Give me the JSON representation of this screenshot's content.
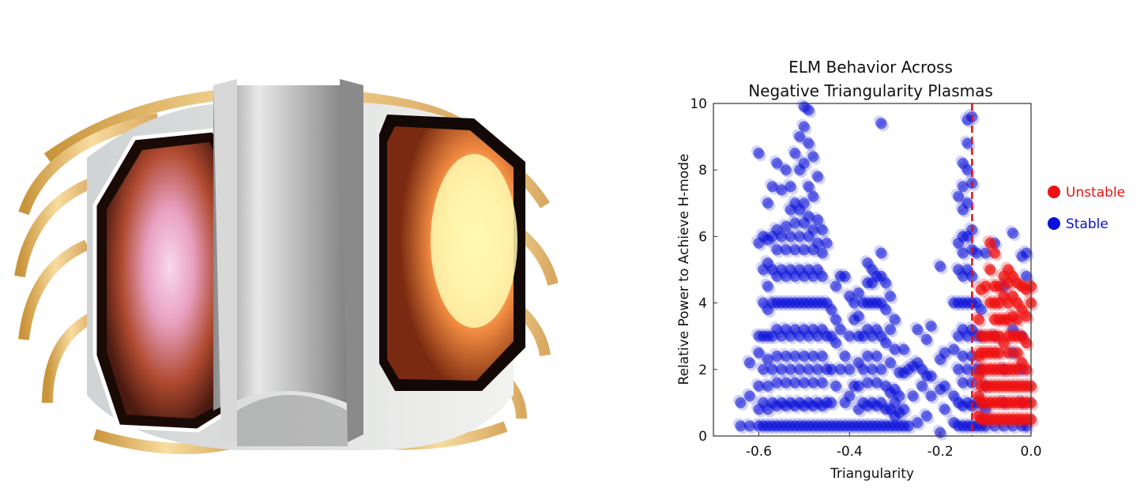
{
  "chart_data": {
    "type": "scatter",
    "title": [
      "ELM Behavior Across",
      "Negative Triangularity Plasmas"
    ],
    "xlabel": "Triangularity",
    "ylabel": "Relative Power to Achieve H-mode",
    "xlim": [
      -0.7,
      0.0
    ],
    "ylim": [
      0,
      10
    ],
    "xticks": [
      "-0.6",
      "-0.4",
      "-0.2",
      "0.0"
    ],
    "xtick_values": [
      -0.6,
      -0.4,
      -0.2,
      0.0
    ],
    "yticks": [
      "0",
      "2",
      "4",
      "6",
      "8",
      "10"
    ],
    "ytick_values": [
      0,
      2,
      4,
      6,
      8,
      10
    ],
    "grid": false,
    "legend_position": "right",
    "threshold_line": {
      "x": -0.13,
      "style": "dashed",
      "color": "#e01010"
    },
    "series": [
      {
        "name": "Stable",
        "color": "#0a10d8",
        "columns": [
          {
            "x": -0.64,
            "y": [
              1.0,
              0.3
            ]
          },
          {
            "x": -0.62,
            "y": [
              0.3,
              1.2,
              2.2
            ]
          },
          {
            "x": -0.6,
            "y": [
              0.3,
              0.8,
              1.5,
              2.5,
              3.0,
              5.8,
              8.5
            ]
          },
          {
            "x": -0.59,
            "y": [
              0.3,
              1,
              2,
              3,
              4,
              5,
              6
            ]
          },
          {
            "x": -0.58,
            "y": [
              0.3,
              0.8,
              1.5,
              2.3,
              3,
              3.8,
              4.5,
              5.2,
              5.9,
              7.0
            ]
          },
          {
            "x": -0.57,
            "y": [
              0.3,
              1,
              2,
              3,
              4,
              5,
              6,
              7.5
            ]
          },
          {
            "x": -0.56,
            "y": [
              0.3,
              0.9,
              1.6,
              2.4,
              3.2,
              4,
              4.8,
              5.6,
              6.2,
              8.2
            ]
          },
          {
            "x": -0.55,
            "y": [
              0.3,
              1,
              2,
              3,
              4,
              5,
              6,
              7.4
            ]
          },
          {
            "x": -0.54,
            "y": [
              0.3,
              0.9,
              1.6,
              2.4,
              3.2,
              4,
              4.8,
              5.6,
              6.3,
              8.0
            ]
          },
          {
            "x": -0.53,
            "y": [
              0.3,
              1,
              2,
              3,
              4,
              5,
              6,
              6.8,
              7.5
            ]
          },
          {
            "x": -0.52,
            "y": [
              0.3,
              0.9,
              1.6,
              2.4,
              3.2,
              4,
              4.8,
              5.6,
              6.4,
              7.0,
              8.5
            ]
          },
          {
            "x": -0.51,
            "y": [
              0.3,
              1,
              2,
              3,
              4,
              5,
              6,
              6.8,
              8.0,
              9.0
            ]
          },
          {
            "x": -0.5,
            "y": [
              0.3,
              0.9,
              1.6,
              2.4,
              3.2,
              4,
              4.8,
              5.6,
              6.4,
              7.0,
              8.2,
              9.3,
              9.9
            ]
          },
          {
            "x": -0.49,
            "y": [
              0.3,
              1,
              2,
              3,
              4,
              5,
              6,
              6.6,
              7.5,
              8.8,
              9.8
            ]
          },
          {
            "x": -0.48,
            "y": [
              0.3,
              0.9,
              1.6,
              2.4,
              3.2,
              4,
              4.8,
              5.6,
              6.2,
              7.2,
              8.4
            ]
          },
          {
            "x": -0.47,
            "y": [
              0.3,
              1,
              2,
              3,
              4,
              5,
              5.8,
              6.5,
              7.8
            ]
          },
          {
            "x": -0.46,
            "y": [
              0.3,
              0.9,
              1.6,
              2.4,
              3.2,
              4,
              4.8,
              5.5,
              6.2
            ]
          },
          {
            "x": -0.45,
            "y": [
              0.3,
              1,
              2,
              3,
              4,
              5.8
            ]
          },
          {
            "x": -0.44,
            "y": [
              0.3,
              1,
              2,
              3,
              3.8
            ]
          },
          {
            "x": -0.43,
            "y": [
              0.3,
              1.5,
              2.8,
              3.5,
              4.5
            ]
          },
          {
            "x": -0.42,
            "y": [
              0.3,
              2.0,
              3.2,
              4.8
            ]
          },
          {
            "x": -0.41,
            "y": [
              0.3,
              1,
              2.4,
              4.8
            ]
          },
          {
            "x": -0.4,
            "y": [
              0.3,
              1.2,
              2,
              3,
              4.2
            ]
          },
          {
            "x": -0.39,
            "y": [
              0.3,
              1.5,
              3.5,
              4.0
            ]
          },
          {
            "x": -0.38,
            "y": [
              0.3,
              0.8,
              1.5,
              2.2,
              3,
              3.6,
              4.3
            ]
          },
          {
            "x": -0.37,
            "y": [
              0.3,
              1,
              2,
              3,
              4
            ]
          },
          {
            "x": -0.36,
            "y": [
              0.3,
              0.9,
              1.6,
              2.4,
              3.2,
              4,
              4.6,
              5.2
            ]
          },
          {
            "x": -0.35,
            "y": [
              0.3,
              1,
              2,
              3,
              4,
              4.6,
              5.0
            ]
          },
          {
            "x": -0.34,
            "y": [
              0.3,
              0.9,
              1.6,
              2.4,
              3.2,
              4,
              4.8
            ]
          },
          {
            "x": -0.33,
            "y": [
              0.3,
              1,
              2,
              3,
              4,
              4.8,
              5.5,
              9.4
            ]
          },
          {
            "x": -0.32,
            "y": [
              0.3,
              0.8,
              1.5,
              2.8,
              3.8,
              4.6
            ]
          },
          {
            "x": -0.31,
            "y": [
              0.3,
              0.8,
              1.3,
              2.2,
              3.2,
              4.2
            ]
          },
          {
            "x": -0.3,
            "y": [
              0.3,
              0.6,
              1.0,
              1.4,
              2.6,
              3.5
            ]
          },
          {
            "x": -0.29,
            "y": [
              0.3,
              0.7,
              1.2,
              1.9
            ]
          },
          {
            "x": -0.28,
            "y": [
              0.3,
              0.8,
              1.9,
              2.6
            ]
          },
          {
            "x": -0.27,
            "y": [
              0.3,
              2.0
            ]
          },
          {
            "x": -0.26,
            "y": [
              2.1,
              1.2
            ]
          },
          {
            "x": -0.25,
            "y": [
              2.2,
              0.4,
              3.2
            ]
          },
          {
            "x": -0.24,
            "y": [
              2.0,
              1.5
            ]
          },
          {
            "x": -0.23,
            "y": [
              1.8,
              2.9,
              0.6
            ]
          },
          {
            "x": -0.22,
            "y": [
              1.2,
              3.3,
              1.8
            ]
          },
          {
            "x": -0.2,
            "y": [
              2.3,
              5.1,
              0.1,
              1.4
            ]
          },
          {
            "x": -0.19,
            "y": [
              1.5,
              0.8,
              2.5
            ]
          },
          {
            "x": -0.17,
            "y": [
              0.4,
              1.2,
              2.6,
              4.0
            ]
          },
          {
            "x": -0.16,
            "y": [
              0.3,
              1,
              2,
              3,
              4,
              5,
              5.8,
              7.2
            ]
          },
          {
            "x": -0.15,
            "y": [
              0.3,
              0.9,
              1.6,
              2.4,
              3.2,
              4,
              4.8,
              5.5,
              6,
              6.8,
              7.5,
              8.2
            ]
          },
          {
            "x": -0.14,
            "y": [
              0.3,
              1,
              2,
              3,
              4,
              5,
              6,
              7.0,
              8.0,
              8.8,
              9.5
            ]
          },
          {
            "x": -0.13,
            "y": [
              0.3,
              0.9,
              1.6,
              2.4,
              3.2,
              4,
              4.8,
              5.6,
              6.2,
              7.6,
              9.6
            ]
          },
          {
            "x": -0.12,
            "y": [
              0.3,
              1,
              2,
              3,
              4,
              5.5
            ]
          },
          {
            "x": -0.11,
            "y": [
              0.3,
              1,
              2,
              3,
              3.8
            ]
          },
          {
            "x": -0.1,
            "y": [
              0.3,
              0.8,
              1.5,
              5.5
            ]
          },
          {
            "x": -0.08,
            "y": [
              0.3,
              3.0,
              5.8
            ]
          },
          {
            "x": -0.06,
            "y": [
              0.3,
              1,
              2,
              4.5
            ]
          },
          {
            "x": -0.04,
            "y": [
              0.3,
              2.5,
              3.2,
              6.1
            ]
          },
          {
            "x": -0.02,
            "y": [
              0.3,
              1,
              2,
              3,
              5.4
            ]
          },
          {
            "x": -0.01,
            "y": [
              0.3,
              4.8,
              5.5
            ]
          }
        ]
      },
      {
        "name": "Unstable",
        "color": "#ee1111",
        "columns": [
          {
            "x": -0.115,
            "y": [
              0.6,
              1.2,
              1.8,
              2.4,
              3.5
            ]
          },
          {
            "x": -0.11,
            "y": [
              0.5,
              1,
              1.5,
              2,
              2.5,
              3.0,
              4.4
            ]
          },
          {
            "x": -0.1,
            "y": [
              0.5,
              1,
              1.5,
              2,
              2.5,
              3,
              4.5
            ]
          },
          {
            "x": -0.09,
            "y": [
              0.5,
              1,
              1.5,
              2,
              2.5,
              3,
              4,
              5,
              5.8
            ]
          },
          {
            "x": -0.08,
            "y": [
              0.5,
              1,
              1.5,
              2,
              2.5,
              3,
              3.5,
              4,
              4.5,
              5.5
            ]
          },
          {
            "x": -0.07,
            "y": [
              0.5,
              1,
              1.5,
              2,
              2.5,
              3,
              3.5,
              4,
              4.5
            ]
          },
          {
            "x": -0.06,
            "y": [
              0.5,
              1,
              1.5,
              2,
              2.8,
              3.5,
              4.2,
              4.8
            ]
          },
          {
            "x": -0.05,
            "y": [
              0.5,
              1,
              1.5,
              2,
              2.5,
              3,
              3.5,
              4,
              4.6,
              5
            ]
          },
          {
            "x": -0.04,
            "y": [
              0.5,
              1,
              1.5,
              2,
              3,
              3.6,
              4.2,
              4.8
            ]
          },
          {
            "x": -0.03,
            "y": [
              0.5,
              1,
              1.5,
              2,
              2.5,
              3,
              3.5,
              4,
              4.6
            ]
          },
          {
            "x": -0.02,
            "y": [
              0.5,
              1,
              1.5,
              2.2,
              3,
              3.8,
              4.5
            ]
          },
          {
            "x": -0.01,
            "y": [
              0.5,
              1,
              1.5,
              2,
              2.8,
              3.6,
              4.4
            ]
          },
          {
            "x": 0.0,
            "y": [
              0.5,
              1,
              1.5,
              4,
              4.5
            ]
          }
        ]
      }
    ],
    "legend": [
      {
        "label": "Unstable",
        "color": "#ee1111"
      },
      {
        "label": "Stable",
        "color": "#0a10d8"
      }
    ]
  },
  "illustration": {
    "subject": "tokamak-cutaway-icon"
  }
}
